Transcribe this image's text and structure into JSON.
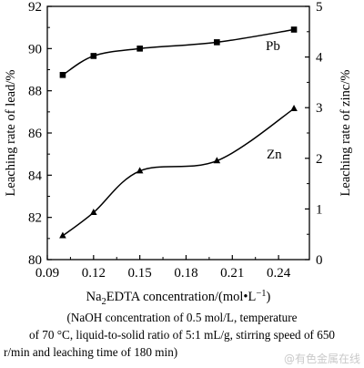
{
  "chart_data": {
    "type": "line",
    "x": [
      0.1,
      0.12,
      0.15,
      0.2,
      0.25
    ],
    "xlim": [
      0.09,
      0.26
    ],
    "xticks": [
      "0.09",
      "0.12",
      "0.15",
      "0.18",
      "0.21",
      "0.24"
    ],
    "xlabel_pre": "Na",
    "xlabel_sub": "2",
    "xlabel_mid": "EDTA concentration/(mol•L",
    "xlabel_sup": "−1",
    "xlabel_post": ")",
    "ylabel": "Leaching rate of lead/%",
    "ylim": [
      80,
      92
    ],
    "yticks": [
      "80",
      "82",
      "84",
      "86",
      "88",
      "90",
      "92"
    ],
    "y2label": "Leaching rate of zinc/%",
    "y2lim": [
      0,
      5
    ],
    "y2ticks": [
      "0",
      "1",
      "2",
      "3",
      "4",
      "5"
    ],
    "series": [
      {
        "name": "Pb",
        "axis": "left",
        "marker": "square",
        "values": [
          88.75,
          89.65,
          90.0,
          90.3,
          90.9
        ]
      },
      {
        "name": "Zn",
        "axis": "right",
        "marker": "triangle",
        "values": [
          0.47,
          0.93,
          1.75,
          1.95,
          2.98
        ]
      }
    ],
    "grid": false
  },
  "caption": {
    "line1": "(NaOH concentration of 0.5 mol/L, temperature",
    "line2": "of 70 °C, liquid-to-solid ratio of 5:1 mL/g, stirring speed of 650",
    "line3": "r/min and leaching time of 180 min)"
  },
  "watermark": "@有色金属在线"
}
